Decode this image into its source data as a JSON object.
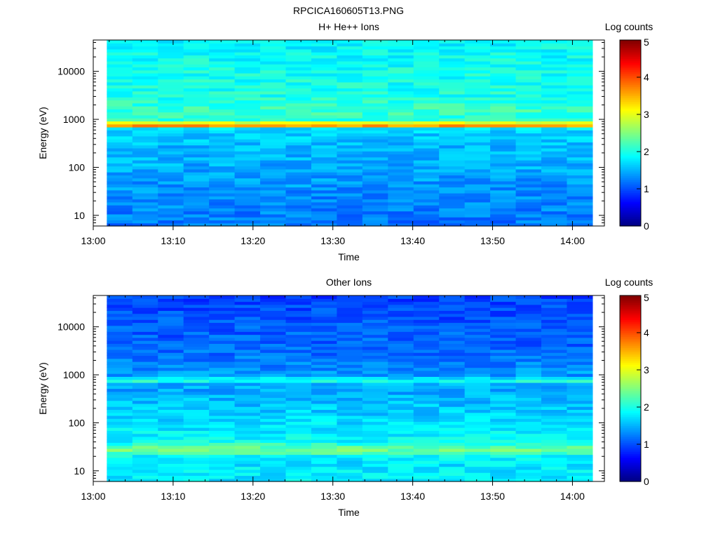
{
  "figure_title": "RPCICA160605T13.PNG",
  "chart_data": [
    {
      "type": "heatmap",
      "title": "H+ He++ Ions",
      "xlabel": "Time",
      "ylabel": "Energy (eV)",
      "colorbar_label": "Log counts",
      "colorbar_ticks": [
        "0",
        "1",
        "2",
        "3",
        "4",
        "5"
      ],
      "colorbar_range": [
        0,
        5
      ],
      "x_ticks": [
        "13:00",
        "13:10",
        "13:20",
        "13:30",
        "13:40",
        "13:50",
        "14:00"
      ],
      "x_range_minutes": [
        0,
        64
      ],
      "data_x_range_minutes": [
        1.7,
        62.5
      ],
      "y_ticks": [
        "10",
        "100",
        "1000",
        "10000"
      ],
      "y_scale": "log",
      "y_range_eV": [
        6,
        45000
      ],
      "time_columns": 19,
      "energy_bins": 62,
      "profile": [
        {
          "energy": 6,
          "level": 1.2
        },
        {
          "energy": 10,
          "level": 1.25
        },
        {
          "energy": 20,
          "level": 1.3
        },
        {
          "energy": 40,
          "level": 1.35
        },
        {
          "energy": 80,
          "level": 1.45
        },
        {
          "energy": 150,
          "level": 1.5
        },
        {
          "energy": 300,
          "level": 1.55
        },
        {
          "energy": 550,
          "level": 1.65
        },
        {
          "energy": 650,
          "level": 1.75
        },
        {
          "energy": 720,
          "level": 3.55
        },
        {
          "energy": 780,
          "level": 3.75
        },
        {
          "energy": 850,
          "level": 3.1
        },
        {
          "energy": 950,
          "level": 2.05
        },
        {
          "energy": 1500,
          "level": 2.15
        },
        {
          "energy": 3000,
          "level": 2.0
        },
        {
          "energy": 10000,
          "level": 1.95
        },
        {
          "energy": 45000,
          "level": 1.85
        }
      ]
    },
    {
      "type": "heatmap",
      "title": "Other Ions",
      "xlabel": "Time",
      "ylabel": "Energy (eV)",
      "colorbar_label": "Log counts",
      "colorbar_ticks": [
        "0",
        "1",
        "2",
        "3",
        "4",
        "5"
      ],
      "colorbar_range": [
        0,
        5
      ],
      "x_ticks": [
        "13:00",
        "13:10",
        "13:20",
        "13:30",
        "13:40",
        "13:50",
        "14:00"
      ],
      "x_range_minutes": [
        0,
        64
      ],
      "data_x_range_minutes": [
        1.7,
        62.5
      ],
      "y_ticks": [
        "10",
        "100",
        "1000",
        "10000"
      ],
      "y_scale": "log",
      "y_range_eV": [
        6,
        45000
      ],
      "time_columns": 19,
      "energy_bins": 62,
      "profile": [
        {
          "energy": 6,
          "level": 1.8
        },
        {
          "energy": 15,
          "level": 1.75
        },
        {
          "energy": 21,
          "level": 1.9
        },
        {
          "energy": 25,
          "level": 2.45
        },
        {
          "energy": 32,
          "level": 2.3
        },
        {
          "energy": 40,
          "level": 1.9
        },
        {
          "energy": 80,
          "level": 1.75
        },
        {
          "energy": 200,
          "level": 1.6
        },
        {
          "energy": 500,
          "level": 1.45
        },
        {
          "energy": 700,
          "level": 1.5
        },
        {
          "energy": 760,
          "level": 2.15
        },
        {
          "energy": 820,
          "level": 2.05
        },
        {
          "energy": 900,
          "level": 1.4
        },
        {
          "energy": 3000,
          "level": 1.15
        },
        {
          "energy": 10000,
          "level": 1.05
        },
        {
          "energy": 45000,
          "level": 0.95
        }
      ]
    }
  ]
}
